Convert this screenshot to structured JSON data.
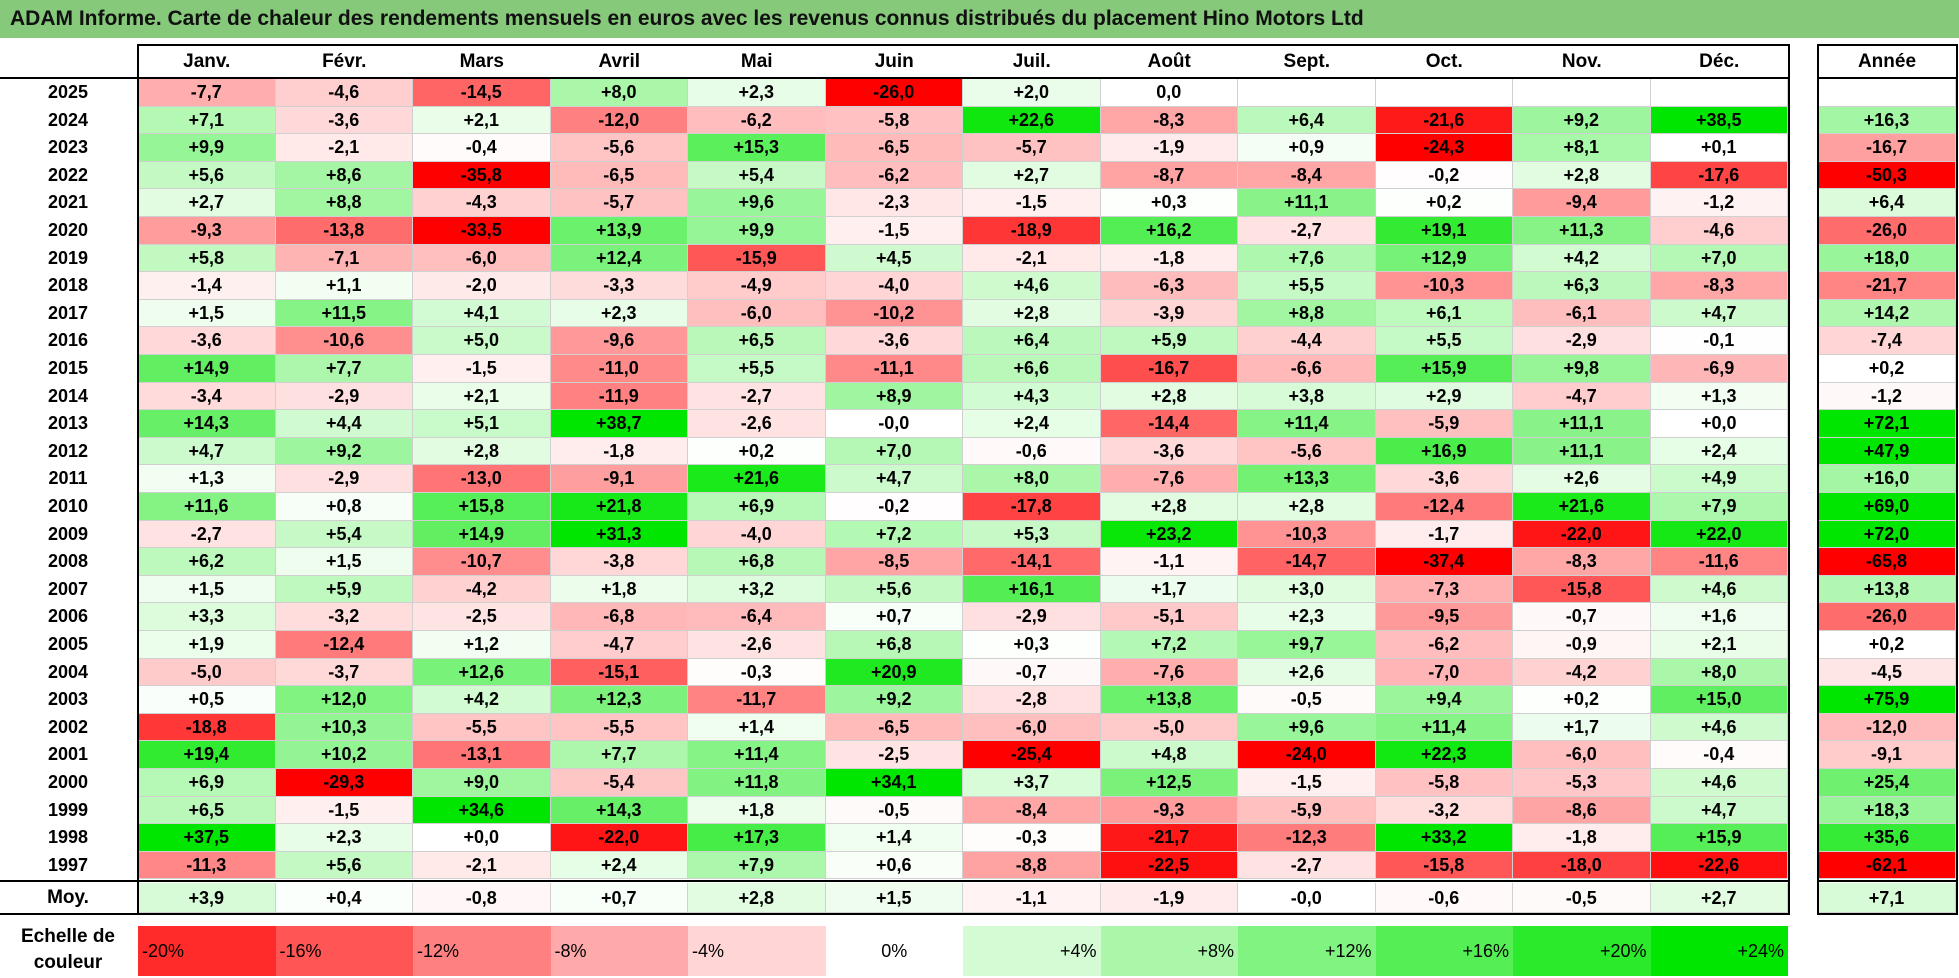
{
  "title": "ADAM Informe. Carte de chaleur des rendements mensuels en euros avec les revenus connus distribués du placement Hino Motors Ltd",
  "chart_data": {
    "type": "heatmap",
    "months": [
      "Janv.",
      "Févr.",
      "Mars",
      "Avril",
      "Mai",
      "Juin",
      "Juil.",
      "Août",
      "Sept.",
      "Oct.",
      "Nov.",
      "Déc."
    ],
    "annual_header": "Année",
    "rows": [
      {
        "year": "2025",
        "values": [
          "-7,7",
          "-4,6",
          "-14,5",
          "+8,0",
          "+2,3",
          "-26,0",
          "+2,0",
          "0,0",
          "",
          "",
          "",
          ""
        ],
        "annual": ""
      },
      {
        "year": "2024",
        "values": [
          "+7,1",
          "-3,6",
          "+2,1",
          "-12,0",
          "-6,2",
          "-5,8",
          "+22,6",
          "-8,3",
          "+6,4",
          "-21,6",
          "+9,2",
          "+38,5"
        ],
        "annual": "+16,3"
      },
      {
        "year": "2023",
        "values": [
          "+9,9",
          "-2,1",
          "-0,4",
          "-5,6",
          "+15,3",
          "-6,5",
          "-5,7",
          "-1,9",
          "+0,9",
          "-24,3",
          "+8,1",
          "+0,1"
        ],
        "annual": "-16,7"
      },
      {
        "year": "2022",
        "values": [
          "+5,6",
          "+8,6",
          "-35,8",
          "-6,5",
          "+5,4",
          "-6,2",
          "+2,7",
          "-8,7",
          "-8,4",
          "-0,2",
          "+2,8",
          "-17,6"
        ],
        "annual": "-50,3"
      },
      {
        "year": "2021",
        "values": [
          "+2,7",
          "+8,8",
          "-4,3",
          "-5,7",
          "+9,6",
          "-2,3",
          "-1,5",
          "+0,3",
          "+11,1",
          "+0,2",
          "-9,4",
          "-1,2"
        ],
        "annual": "+6,4"
      },
      {
        "year": "2020",
        "values": [
          "-9,3",
          "-13,8",
          "-33,5",
          "+13,9",
          "+9,9",
          "-1,5",
          "-18,9",
          "+16,2",
          "-2,7",
          "+19,1",
          "+11,3",
          "-4,6"
        ],
        "annual": "-26,0"
      },
      {
        "year": "2019",
        "values": [
          "+5,8",
          "-7,1",
          "-6,0",
          "+12,4",
          "-15,9",
          "+4,5",
          "-2,1",
          "-1,8",
          "+7,6",
          "+12,9",
          "+4,2",
          "+7,0"
        ],
        "annual": "+18,0"
      },
      {
        "year": "2018",
        "values": [
          "-1,4",
          "+1,1",
          "-2,0",
          "-3,3",
          "-4,9",
          "-4,0",
          "+4,6",
          "-6,3",
          "+5,5",
          "-10,3",
          "+6,3",
          "-8,3"
        ],
        "annual": "-21,7"
      },
      {
        "year": "2017",
        "values": [
          "+1,5",
          "+11,5",
          "+4,1",
          "+2,3",
          "-6,0",
          "-10,2",
          "+2,8",
          "-3,9",
          "+8,8",
          "+6,1",
          "-6,1",
          "+4,7"
        ],
        "annual": "+14,2"
      },
      {
        "year": "2016",
        "values": [
          "-3,6",
          "-10,6",
          "+5,0",
          "-9,6",
          "+6,5",
          "-3,6",
          "+6,4",
          "+5,9",
          "-4,4",
          "+5,5",
          "-2,9",
          "-0,1"
        ],
        "annual": "-7,4"
      },
      {
        "year": "2015",
        "values": [
          "+14,9",
          "+7,7",
          "-1,5",
          "-11,0",
          "+5,5",
          "-11,1",
          "+6,6",
          "-16,7",
          "-6,6",
          "+15,9",
          "+9,8",
          "-6,9"
        ],
        "annual": "+0,2"
      },
      {
        "year": "2014",
        "values": [
          "-3,4",
          "-2,9",
          "+2,1",
          "-11,9",
          "-2,7",
          "+8,9",
          "+4,3",
          "+2,8",
          "+3,8",
          "+2,9",
          "-4,7",
          "+1,3"
        ],
        "annual": "-1,2"
      },
      {
        "year": "2013",
        "values": [
          "+14,3",
          "+4,4",
          "+5,1",
          "+38,7",
          "-2,6",
          "-0,0",
          "+2,4",
          "-14,4",
          "+11,4",
          "-5,9",
          "+11,1",
          "+0,0"
        ],
        "annual": "+72,1"
      },
      {
        "year": "2012",
        "values": [
          "+4,7",
          "+9,2",
          "+2,8",
          "-1,8",
          "+0,2",
          "+7,0",
          "-0,6",
          "-3,6",
          "-5,6",
          "+16,9",
          "+11,1",
          "+2,4"
        ],
        "annual": "+47,9"
      },
      {
        "year": "2011",
        "values": [
          "+1,3",
          "-2,9",
          "-13,0",
          "-9,1",
          "+21,6",
          "+4,7",
          "+8,0",
          "-7,6",
          "+13,3",
          "-3,6",
          "+2,6",
          "+4,9"
        ],
        "annual": "+16,0"
      },
      {
        "year": "2010",
        "values": [
          "+11,6",
          "+0,8",
          "+15,8",
          "+21,8",
          "+6,9",
          "-0,2",
          "-17,8",
          "+2,8",
          "+2,8",
          "-12,4",
          "+21,6",
          "+7,9"
        ],
        "annual": "+69,0"
      },
      {
        "year": "2009",
        "values": [
          "-2,7",
          "+5,4",
          "+14,9",
          "+31,3",
          "-4,0",
          "+7,2",
          "+5,3",
          "+23,2",
          "-10,3",
          "-1,7",
          "-22,0",
          "+22,0"
        ],
        "annual": "+72,0"
      },
      {
        "year": "2008",
        "values": [
          "+6,2",
          "+1,5",
          "-10,7",
          "-3,8",
          "+6,8",
          "-8,5",
          "-14,1",
          "-1,1",
          "-14,7",
          "-37,4",
          "-8,3",
          "-11,6"
        ],
        "annual": "-65,8"
      },
      {
        "year": "2007",
        "values": [
          "+1,5",
          "+5,9",
          "-4,2",
          "+1,8",
          "+3,2",
          "+5,6",
          "+16,1",
          "+1,7",
          "+3,0",
          "-7,3",
          "-15,8",
          "+4,6"
        ],
        "annual": "+13,8"
      },
      {
        "year": "2006",
        "values": [
          "+3,3",
          "-3,2",
          "-2,5",
          "-6,8",
          "-6,4",
          "+0,7",
          "-2,9",
          "-5,1",
          "+2,3",
          "-9,5",
          "-0,7",
          "+1,6"
        ],
        "annual": "-26,0"
      },
      {
        "year": "2005",
        "values": [
          "+1,9",
          "-12,4",
          "+1,2",
          "-4,7",
          "-2,6",
          "+6,8",
          "+0,3",
          "+7,2",
          "+9,7",
          "-6,2",
          "-0,9",
          "+2,1"
        ],
        "annual": "+0,2"
      },
      {
        "year": "2004",
        "values": [
          "-5,0",
          "-3,7",
          "+12,6",
          "-15,1",
          "-0,3",
          "+20,9",
          "-0,7",
          "-7,6",
          "+2,6",
          "-7,0",
          "-4,2",
          "+8,0"
        ],
        "annual": "-4,5"
      },
      {
        "year": "2003",
        "values": [
          "+0,5",
          "+12,0",
          "+4,2",
          "+12,3",
          "-11,7",
          "+9,2",
          "-2,8",
          "+13,8",
          "-0,5",
          "+9,4",
          "+0,2",
          "+15,0"
        ],
        "annual": "+75,9"
      },
      {
        "year": "2002",
        "values": [
          "-18,8",
          "+10,3",
          "-5,5",
          "-5,5",
          "+1,4",
          "-6,5",
          "-6,0",
          "-5,0",
          "+9,6",
          "+11,4",
          "+1,7",
          "+4,6"
        ],
        "annual": "-12,0"
      },
      {
        "year": "2001",
        "values": [
          "+19,4",
          "+10,2",
          "-13,1",
          "+7,7",
          "+11,4",
          "-2,5",
          "-25,4",
          "+4,8",
          "-24,0",
          "+22,3",
          "-6,0",
          "-0,4"
        ],
        "annual": "-9,1"
      },
      {
        "year": "2000",
        "values": [
          "+6,9",
          "-29,3",
          "+9,0",
          "-5,4",
          "+11,8",
          "+34,1",
          "+3,7",
          "+12,5",
          "-1,5",
          "-5,8",
          "-5,3",
          "+4,6"
        ],
        "annual": "+25,4"
      },
      {
        "year": "1999",
        "values": [
          "+6,5",
          "-1,5",
          "+34,6",
          "+14,3",
          "+1,8",
          "-0,5",
          "-8,4",
          "-9,3",
          "-5,9",
          "-3,2",
          "-8,6",
          "+4,7"
        ],
        "annual": "+18,3"
      },
      {
        "year": "1998",
        "values": [
          "+37,5",
          "+2,3",
          "+0,0",
          "-22,0",
          "+17,3",
          "+1,4",
          "-0,3",
          "-21,7",
          "-12,3",
          "+33,2",
          "-1,8",
          "+15,9"
        ],
        "annual": "+35,6"
      },
      {
        "year": "1997",
        "values": [
          "-11,3",
          "+5,6",
          "-2,1",
          "+2,4",
          "+7,9",
          "+0,6",
          "-8,8",
          "-22,5",
          "-2,7",
          "-15,8",
          "-18,0",
          "-22,6"
        ],
        "annual": "-62,1"
      }
    ],
    "average": {
      "label": "Moy.",
      "values": [
        "+3,9",
        "+0,4",
        "-0,8",
        "+0,7",
        "+2,8",
        "+1,5",
        "-1,1",
        "-1,9",
        "-0,0",
        "-0,6",
        "-0,5",
        "+2,7"
      ],
      "annual": "+7,1"
    },
    "scale": {
      "label": "Echelle de couleur",
      "steps": [
        {
          "label": "-20%",
          "value": -20,
          "align": "left"
        },
        {
          "label": "-16%",
          "value": -16,
          "align": "left"
        },
        {
          "label": "-12%",
          "value": -12,
          "align": "left"
        },
        {
          "label": "-8%",
          "value": -8,
          "align": "left"
        },
        {
          "label": "-4%",
          "value": -4,
          "align": "left"
        },
        {
          "label": "0%",
          "value": 0,
          "align": "center"
        },
        {
          "label": "+4%",
          "value": 4,
          "align": "right"
        },
        {
          "label": "+8%",
          "value": 8,
          "align": "right"
        },
        {
          "label": "+12%",
          "value": 12,
          "align": "right"
        },
        {
          "label": "+16%",
          "value": 16,
          "align": "right"
        },
        {
          "label": "+20%",
          "value": 20,
          "align": "right"
        },
        {
          "label": "+24%",
          "value": 24,
          "align": "right"
        }
      ]
    }
  }
}
